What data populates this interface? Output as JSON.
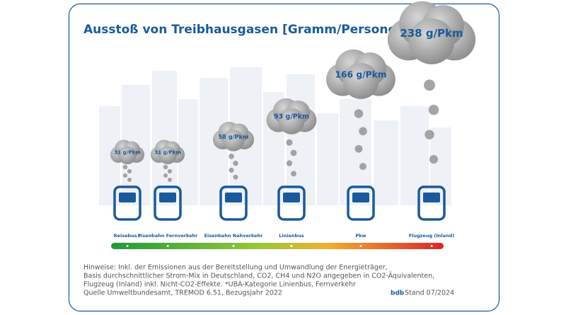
{
  "chart_data": {
    "type": "cloud",
    "title": "Ausstoß von Treibhausgasen [Gramm/Personen-km]",
    "categories": [
      "Reisebus *",
      "Eisenbahn Fernverkehr",
      "Eisenbahn Nahverkehr",
      "Linienbus",
      "Pkw",
      "Flugzeug (Inland)"
    ],
    "values": [
      31,
      31,
      58,
      93,
      166,
      238
    ],
    "value_labels": [
      "31 g/Pkm",
      "31 g/Pkm",
      "58 g/Pkm",
      "93 g/Pkm",
      "166 g/Pkm",
      "238 g/Pkm"
    ],
    "color": "#1a5a9c",
    "cloud_color": "#8f8f8f",
    "notes": [
      "Hinweise: Inkl. der Emissionen aus der Bereitstellung und Umwandlung der Energieträger,",
      "Basis durchschnittlicher Strom-Mix in Deutschland, CO2, CH4 und N2O angegeben in CO2-Äquivalenten,",
      "Flugzeug (Inland) inkl. Nicht-CO2-Effekte. *UBA-Kategorie Linienbus, Fernverkehr",
      "Quelle Umweltbundesamt, TREMOD 6.51, Bezugsjahr 2022"
    ],
    "logo": "bdb",
    "stand": "Stand 07/2024"
  }
}
